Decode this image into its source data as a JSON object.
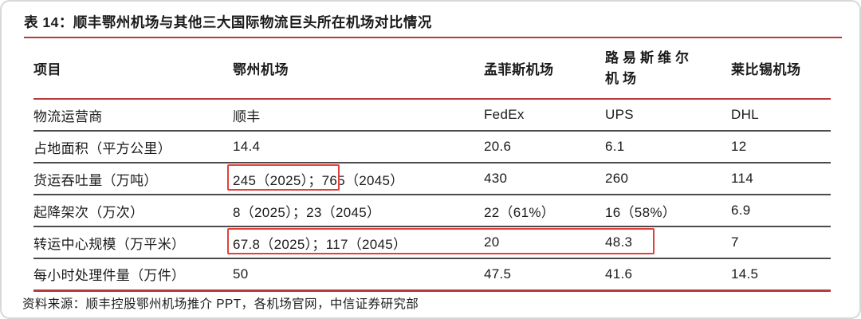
{
  "card": {
    "title": "表 14：顺丰鄂州机场与其他三大国际物流巨头所在机场对比情况",
    "source": "资料来源：顺丰控股鄂州机场推介 PPT，各机场官网，中信证券研究部"
  },
  "table": {
    "headers": [
      "项目",
      "鄂州机场",
      "孟菲斯机场",
      "路易斯维尔机场",
      "莱比锡机场"
    ],
    "rows": [
      {
        "cells": [
          "物流运营商",
          "顺丰",
          "FedEx",
          "UPS",
          "DHL"
        ]
      },
      {
        "cells": [
          "占地面积（平方公里）",
          "14.4",
          "20.6",
          "6.1",
          "12"
        ]
      },
      {
        "cells": [
          "货运吞吐量（万吨）",
          "245（2025）；765（2045）",
          "430",
          "260",
          "114"
        ]
      },
      {
        "cells": [
          "起降架次（万次）",
          "8（2025）；23（2045）",
          "22（61%）",
          "16（58%）",
          "6.9"
        ]
      },
      {
        "cells": [
          "转运中心规模（万平米）",
          "67.8（2025）；117（2045）",
          "20",
          "48.3",
          "7"
        ]
      },
      {
        "cells": [
          "每小时处理件量（万件）",
          "50",
          "47.5",
          "41.6",
          "14.5"
        ]
      }
    ]
  },
  "annotations": {
    "highlight_boxes": [
      {
        "highlighted_text": "245（2025）"
      },
      {
        "highlighted_text": "67.8（2025）；117（2045）｜20｜48.3"
      }
    ],
    "box_color": "#e4403b"
  },
  "colors": {
    "rule_red": "#b93a3c",
    "row_divider": "#4b4b4b",
    "text": "#1b1b1b",
    "card_border": "#d8d8d8"
  }
}
